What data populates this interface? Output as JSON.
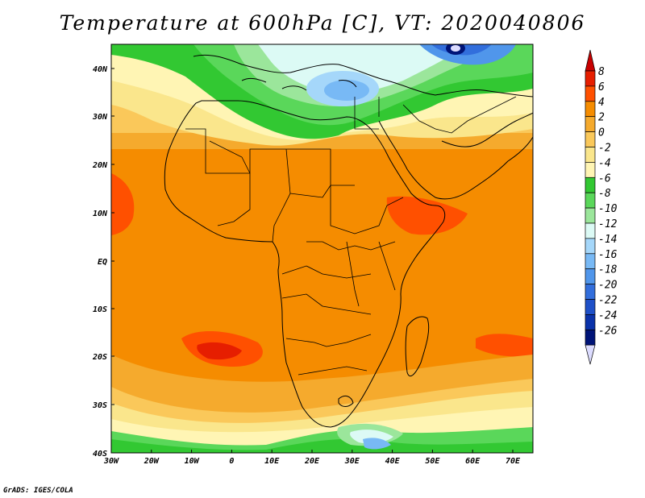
{
  "title": "Temperature at 600hPa [C], VT: 2020040806",
  "credit": "GrADS: IGES/COLA",
  "map": {
    "lon_ticks": [
      "30W",
      "20W",
      "10W",
      "0",
      "10E",
      "20E",
      "30E",
      "40E",
      "50E",
      "60E",
      "70E"
    ],
    "lat_ticks": [
      "40N",
      "30N",
      "20N",
      "10N",
      "EQ",
      "10S",
      "20S",
      "30S",
      "40S"
    ],
    "lon_range": [
      -30,
      75
    ],
    "lat_range": [
      -40,
      44
    ]
  },
  "colorbar": {
    "labels": [
      "8",
      "6",
      "4",
      "2",
      "0",
      "-2",
      "-4",
      "-6",
      "-8",
      "-10",
      "-12",
      "-14",
      "-16",
      "-18",
      "-20",
      "-22",
      "-24",
      "-26"
    ],
    "colors": [
      "#e61e00",
      "#ff5000",
      "#f58c00",
      "#f5aa2d",
      "#fac85a",
      "#fae68c",
      "#fff5b4",
      "#32c832",
      "#5ad75a",
      "#9be69b",
      "#dcfaf5",
      "#a5d7fa",
      "#78b9f5",
      "#5096eb",
      "#326edc",
      "#1e50c8",
      "#0a32aa",
      "#001478"
    ]
  },
  "colors": {
    "land_outline": "#000000",
    "background": "#ffffff"
  }
}
